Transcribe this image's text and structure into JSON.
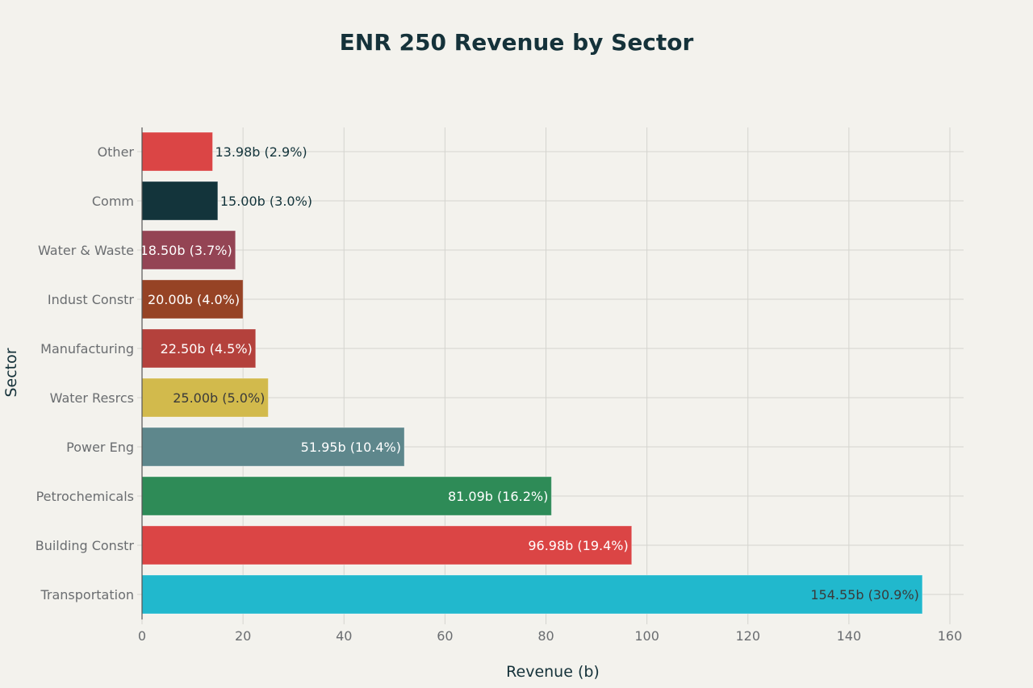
{
  "chart_data": {
    "type": "bar",
    "orientation": "horizontal",
    "title": "ENR 250 Revenue by Sector",
    "xlabel": "Revenue (b)",
    "ylabel": "Sector",
    "xlim": [
      0,
      160
    ],
    "xticks": [
      0,
      20,
      40,
      60,
      80,
      100,
      120,
      140,
      160
    ],
    "grid": true,
    "legend": "none",
    "categories": [
      "Transportation",
      "Building Constr",
      "Petrochemicals",
      "Power Eng",
      "Water Resrcs",
      "Manufacturing",
      "Indust Constr",
      "Water & Waste",
      "Comm",
      "Other"
    ],
    "values": [
      154.55,
      96.98,
      81.09,
      51.95,
      25.0,
      22.5,
      20.0,
      18.5,
      15.0,
      13.98
    ],
    "labels": [
      "154.55b (30.9%)",
      "96.98b (19.4%)",
      "81.09b (16.2%)",
      "51.95b (10.4%)",
      "25.00b (5.0%)",
      "22.50b (4.5%)",
      "20.00b (4.0%)",
      "18.50b (3.7%)",
      "15.00b (3.0%)",
      "13.98b (2.9%)"
    ],
    "colors": [
      "#21b8cd",
      "#db4545",
      "#2e8b57",
      "#5e878c",
      "#d2ba4c",
      "#b4413c",
      "#964325",
      "#944454",
      "#13343b",
      "#db4545"
    ],
    "label_colors": [
      "#3a3a3a",
      "#ffffff",
      "#ffffff",
      "#ffffff",
      "#3a3a3a",
      "#ffffff",
      "#ffffff",
      "#ffffff",
      "#13343b",
      "#13343b"
    ],
    "label_inside": [
      true,
      true,
      true,
      true,
      true,
      true,
      true,
      true,
      false,
      false
    ]
  }
}
